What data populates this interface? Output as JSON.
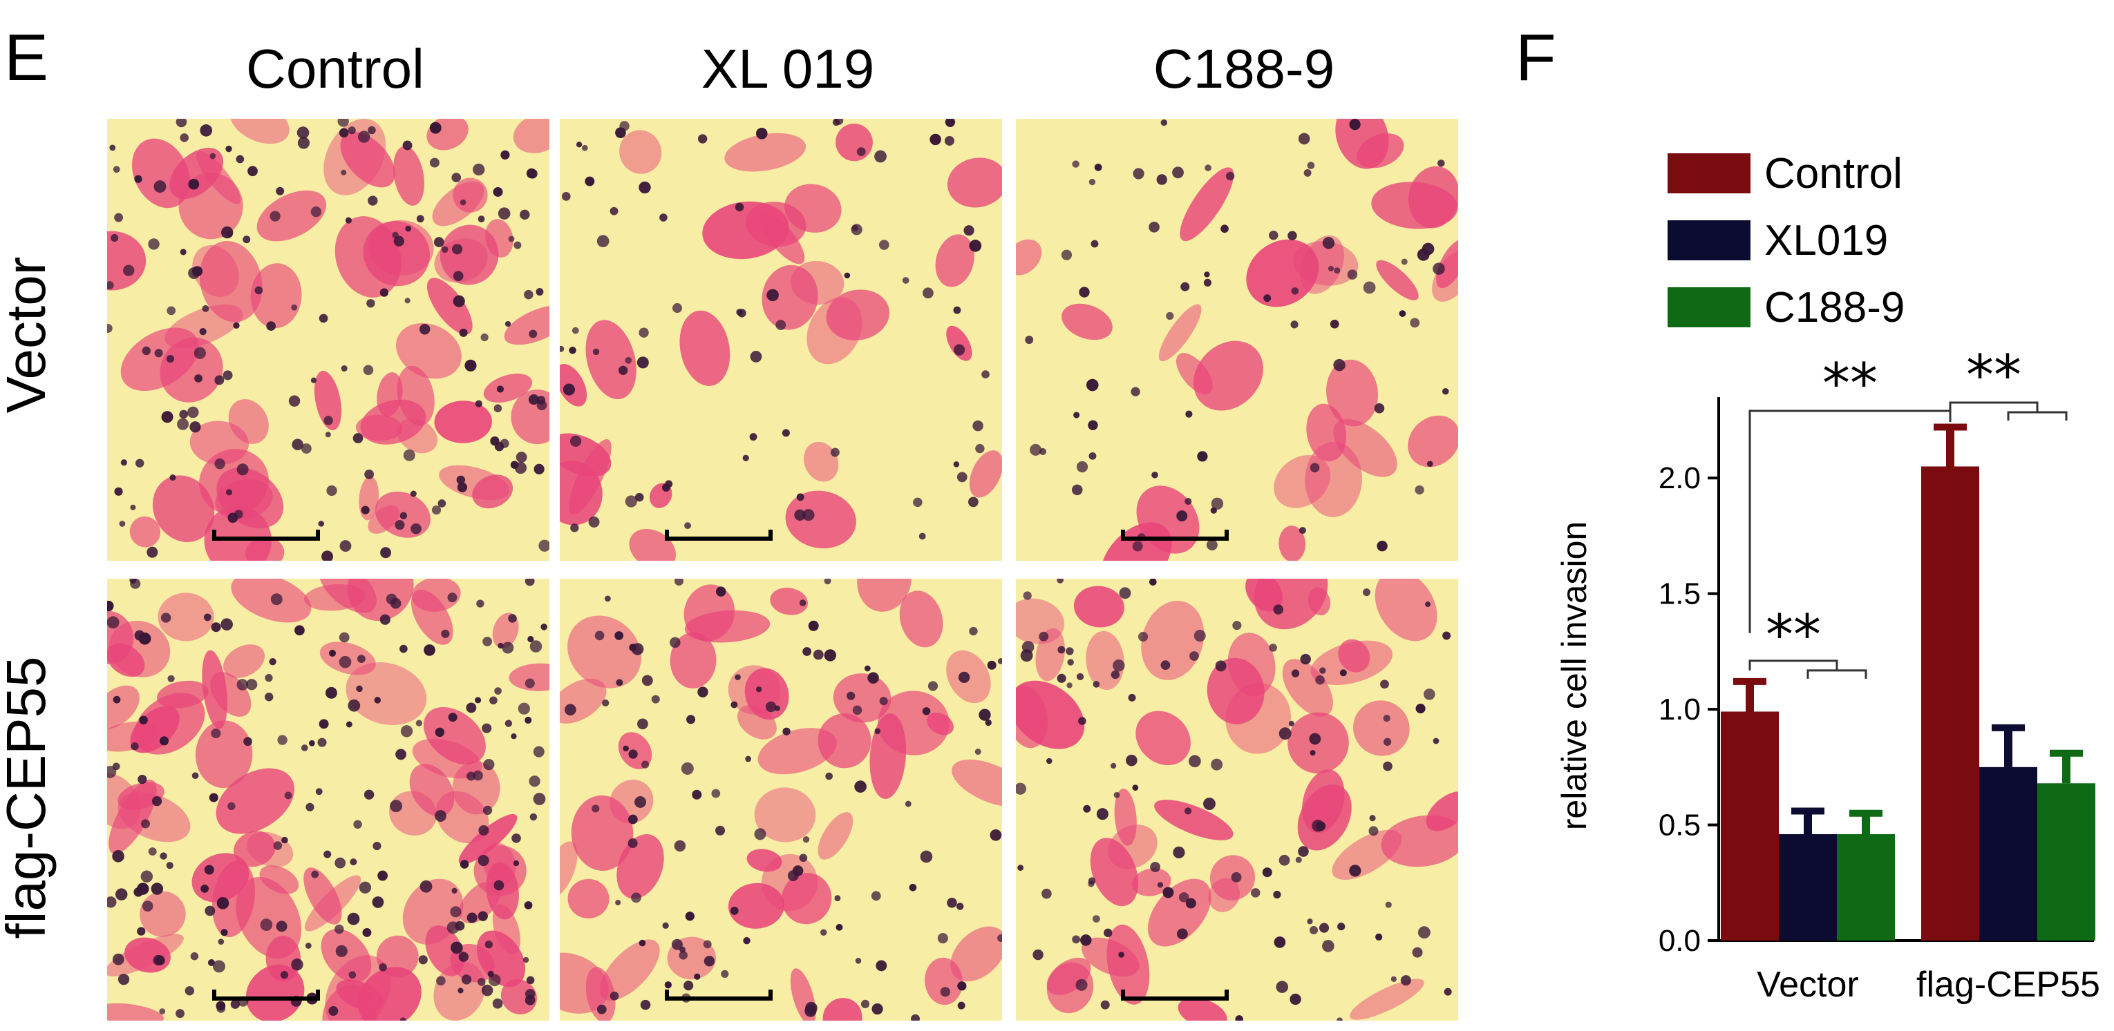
{
  "panel_e": {
    "label": "E",
    "columns": [
      "Control",
      "XL 019",
      "C188-9"
    ],
    "rows": [
      "Vector",
      "flag-CEP55"
    ],
    "images": [
      {
        "row": "Vector",
        "column": "Control",
        "cell_density": "high"
      },
      {
        "row": "Vector",
        "column": "XL 019",
        "cell_density": "low"
      },
      {
        "row": "Vector",
        "column": "C188-9",
        "cell_density": "low"
      },
      {
        "row": "flag-CEP55",
        "column": "Control",
        "cell_density": "very high"
      },
      {
        "row": "flag-CEP55",
        "column": "XL 019",
        "cell_density": "medium"
      },
      {
        "row": "flag-CEP55",
        "column": "C188-9",
        "cell_density": "medium"
      }
    ],
    "colors": {
      "background": "#f7eda4",
      "cytoplasm": "#e8457a",
      "nuclei": "#3a1838",
      "scale_bar": "#000000"
    }
  },
  "panel_f": {
    "label": "F"
  },
  "chart_data": {
    "type": "bar",
    "categories": [
      "Vector",
      "flag-CEP55"
    ],
    "series": [
      {
        "name": "Control",
        "values": [
          0.99,
          2.05
        ],
        "errors": [
          0.13,
          0.17
        ],
        "color": "#7a0b0f"
      },
      {
        "name": "XL019",
        "values": [
          0.46,
          0.75
        ],
        "errors": [
          0.1,
          0.17
        ],
        "color": "#0c0c33"
      },
      {
        "name": "C188-9",
        "values": [
          0.46,
          0.68
        ],
        "errors": [
          0.09,
          0.13
        ],
        "color": "#0e6a14"
      }
    ],
    "ylabel": "relative cell invasion",
    "xlabel": "",
    "ylim": [
      0,
      2.35
    ],
    "yticks": [
      0.0,
      0.5,
      1.0,
      1.5,
      2.0
    ],
    "ytick_labels": [
      "0.0",
      "0.5",
      "1.0",
      "1.5",
      "2.0"
    ],
    "legend_position": "top-right",
    "grid": false,
    "significance": [
      {
        "label": "**",
        "comparison": "Vector Control vs Vector XL019 / C188-9"
      },
      {
        "label": "**",
        "comparison": "Vector Control vs flag-CEP55 Control"
      },
      {
        "label": "**",
        "comparison": "flag-CEP55 Control vs flag-CEP55 XL019 / C188-9"
      }
    ]
  }
}
